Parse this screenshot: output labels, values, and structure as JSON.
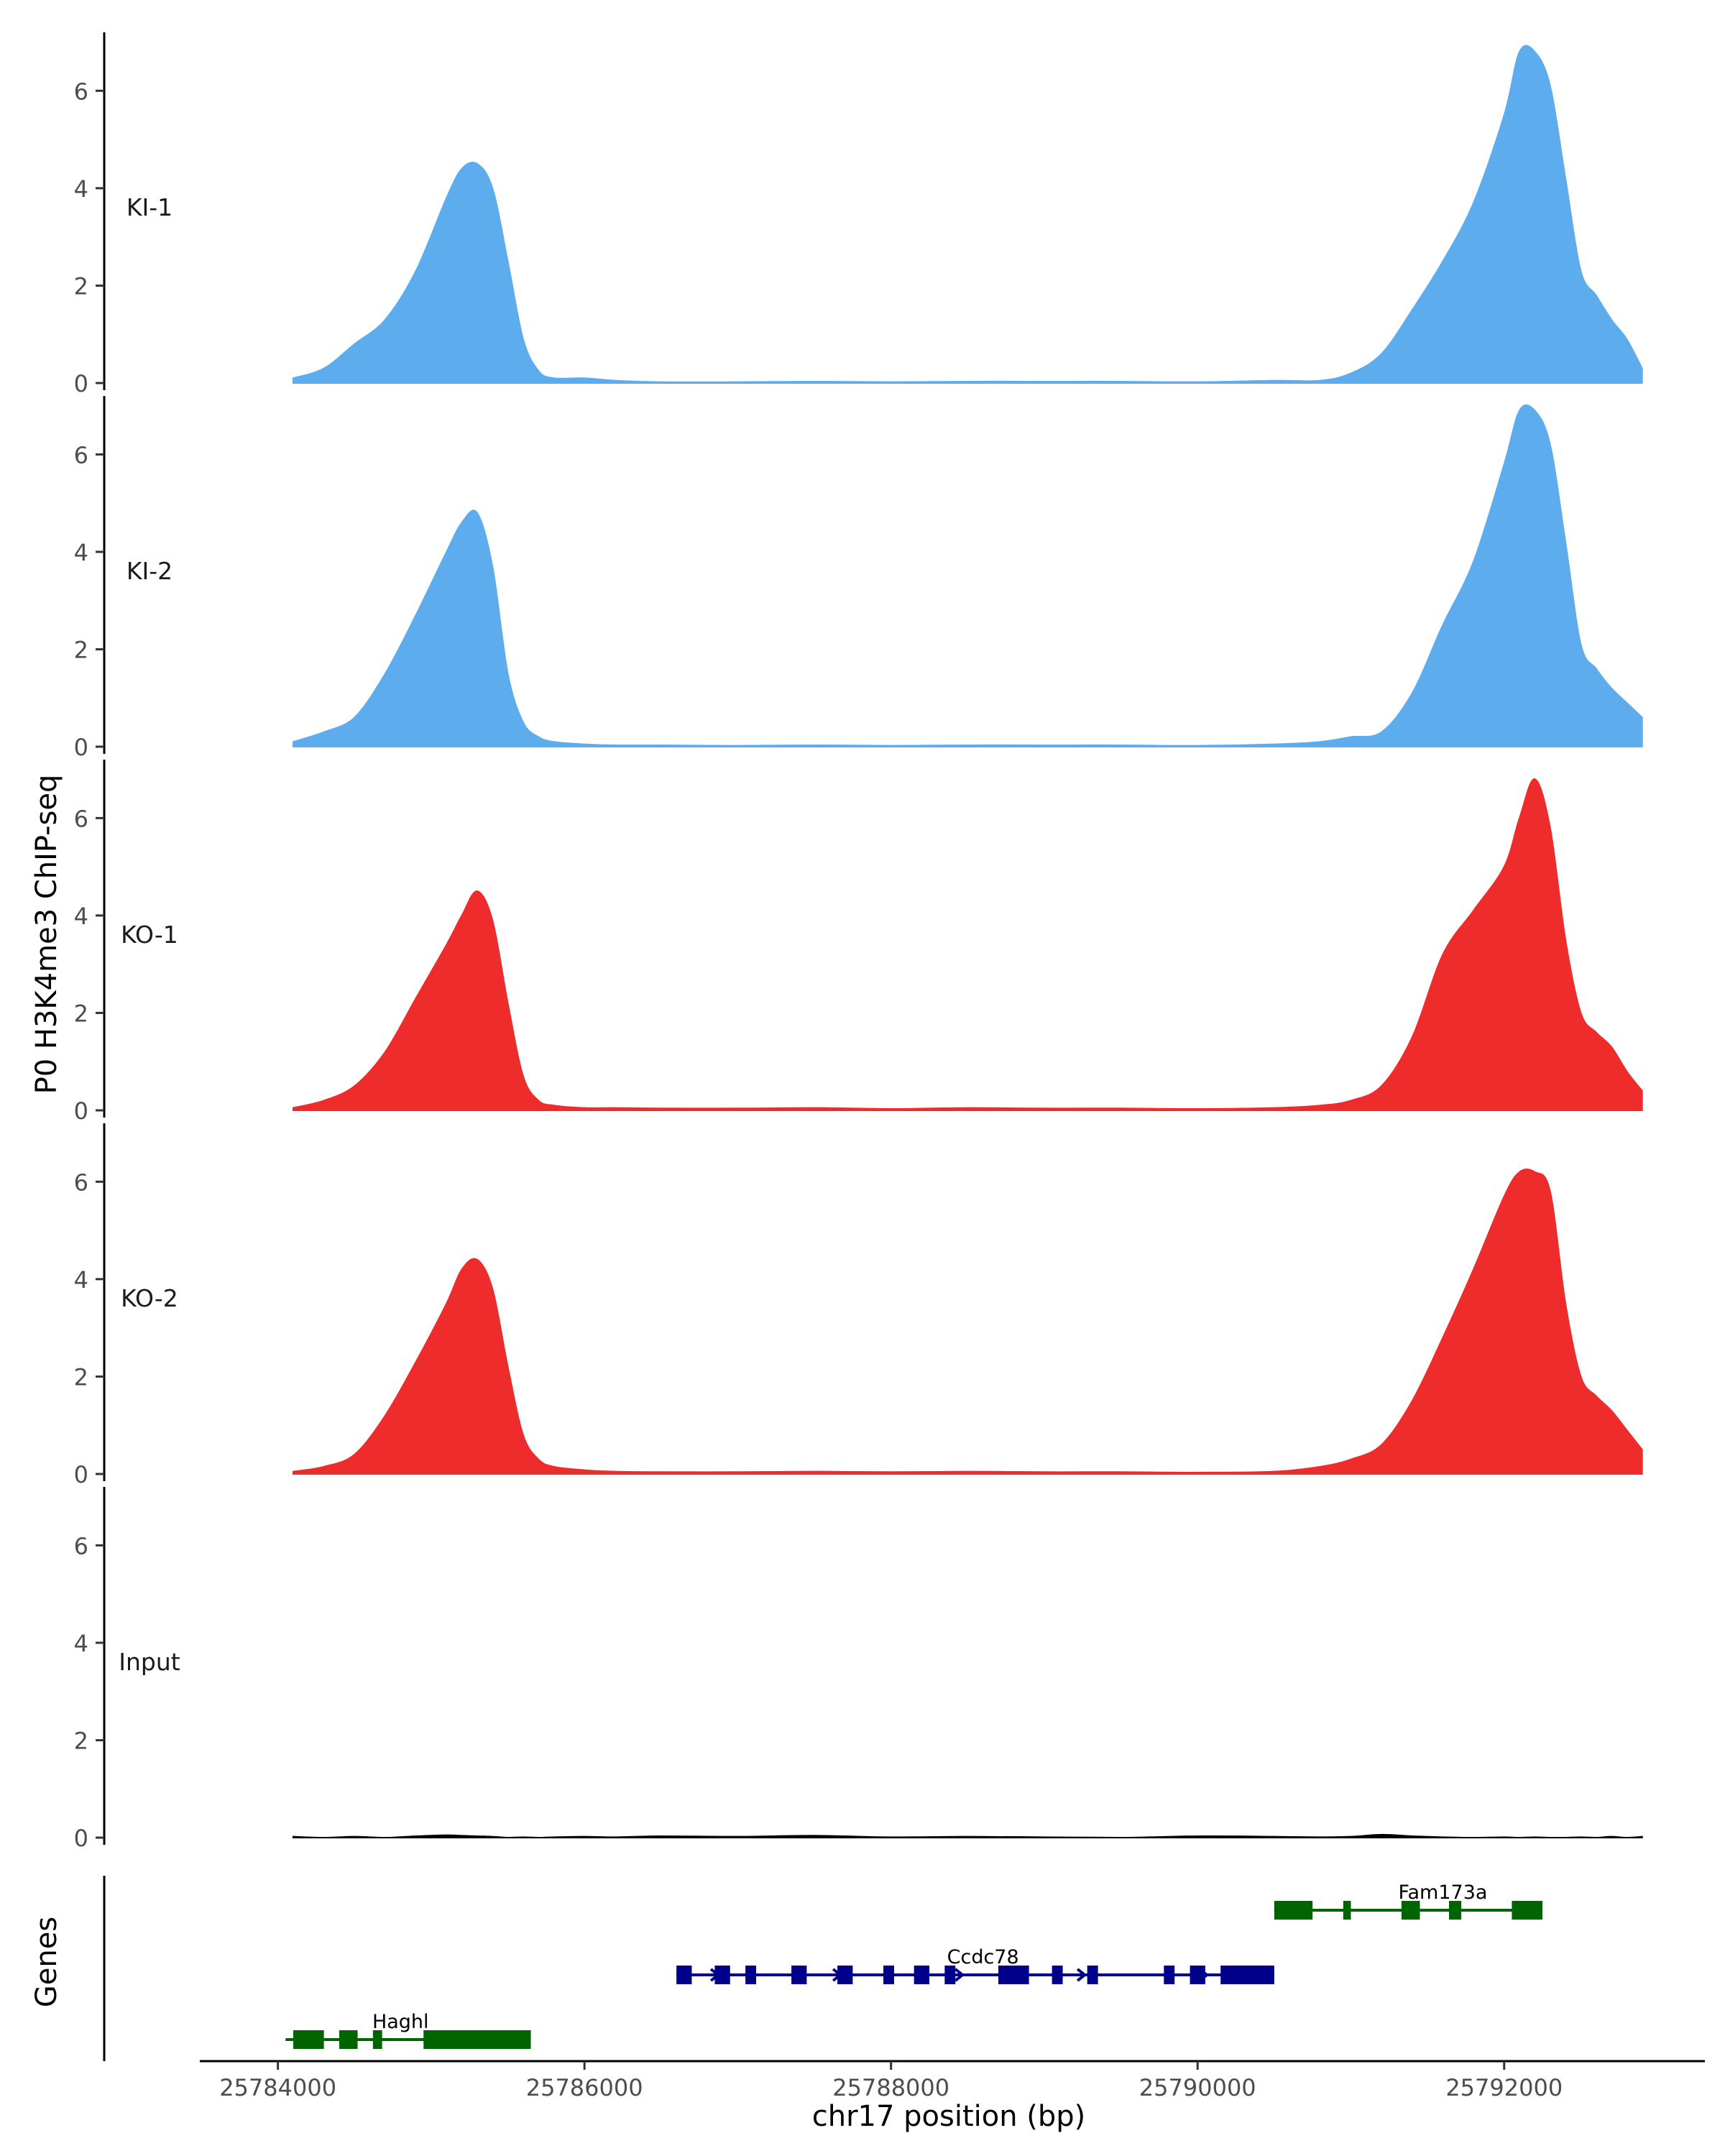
{
  "chart_data": {
    "type": "area",
    "ylabel": "P0 H3K4me3 ChIP-seq",
    "xlabel": "chr17 position (bp)",
    "ylim": [
      0,
      7.2
    ],
    "xlim": [
      25783500,
      25793300
    ],
    "y_ticks": [
      0,
      2,
      4,
      6
    ],
    "x_ticks": [
      25784000,
      25786000,
      25788000,
      25790000,
      25792000
    ],
    "x_tick_labels": [
      "25784000",
      "25786000",
      "25788000",
      "25790000",
      "25792000"
    ],
    "colors": {
      "KI": "#5DADEE",
      "KO": "#EE2C2C",
      "Input": "#000000",
      "minus_strand_gene": "#006400",
      "plus_strand_gene": "#00008B"
    },
    "x": [
      25784100,
      25784300,
      25784500,
      25784700,
      25784900,
      25785100,
      25785200,
      25785300,
      25785400,
      25785500,
      25785600,
      25785700,
      25785800,
      25786000,
      25786200,
      25786500,
      25787000,
      25787500,
      25788000,
      25788500,
      25789000,
      25789500,
      25790000,
      25790500,
      25790800,
      25791000,
      25791200,
      25791400,
      25791600,
      25791800,
      25792000,
      25792100,
      25792200,
      25792300,
      25792400,
      25792500,
      25792600,
      25792700,
      25792800,
      25792900
    ],
    "tracks": [
      {
        "name": "KI-1",
        "color": "#5DADEE",
        "values": [
          0.1,
          0.3,
          0.8,
          1.3,
          2.3,
          3.8,
          4.4,
          4.5,
          4.0,
          2.5,
          0.9,
          0.25,
          0.1,
          0.1,
          0.05,
          0.02,
          0.02,
          0.03,
          0.02,
          0.03,
          0.03,
          0.03,
          0.02,
          0.05,
          0.05,
          0.2,
          0.6,
          1.5,
          2.5,
          3.7,
          5.5,
          6.8,
          6.8,
          6.1,
          4.2,
          2.3,
          1.8,
          1.3,
          0.9,
          0.3
        ]
      },
      {
        "name": "KI-2",
        "color": "#5DADEE",
        "values": [
          0.1,
          0.3,
          0.6,
          1.5,
          2.7,
          4.0,
          4.6,
          4.8,
          3.7,
          1.5,
          0.5,
          0.2,
          0.1,
          0.05,
          0.03,
          0.03,
          0.02,
          0.03,
          0.02,
          0.03,
          0.03,
          0.03,
          0.02,
          0.05,
          0.1,
          0.2,
          0.3,
          1.1,
          2.5,
          3.8,
          5.8,
          6.9,
          6.9,
          6.2,
          4.2,
          2.1,
          1.6,
          1.2,
          0.9,
          0.6
        ]
      },
      {
        "name": "KO-1",
        "color": "#EE2C2C",
        "values": [
          0.05,
          0.2,
          0.5,
          1.2,
          2.3,
          3.4,
          4.0,
          4.5,
          3.9,
          2.2,
          0.7,
          0.2,
          0.1,
          0.05,
          0.05,
          0.04,
          0.04,
          0.05,
          0.03,
          0.05,
          0.04,
          0.04,
          0.03,
          0.05,
          0.1,
          0.2,
          0.5,
          1.5,
          3.2,
          4.1,
          5.0,
          6.0,
          6.8,
          5.8,
          3.5,
          2.0,
          1.6,
          1.3,
          0.8,
          0.4
        ]
      },
      {
        "name": "KO-2",
        "color": "#EE2C2C",
        "values": [
          0.05,
          0.15,
          0.4,
          1.2,
          2.3,
          3.5,
          4.2,
          4.4,
          3.8,
          2.2,
          0.8,
          0.3,
          0.15,
          0.08,
          0.05,
          0.04,
          0.04,
          0.05,
          0.04,
          0.05,
          0.04,
          0.04,
          0.03,
          0.05,
          0.15,
          0.3,
          0.6,
          1.5,
          2.8,
          4.2,
          5.7,
          6.2,
          6.2,
          5.8,
          3.5,
          2.0,
          1.6,
          1.3,
          0.9,
          0.5
        ]
      },
      {
        "name": "Input",
        "color": "#000000",
        "values": [
          0.02,
          0.0,
          0.02,
          0.0,
          0.03,
          0.05,
          0.04,
          0.03,
          0.02,
          0.0,
          0.01,
          0.0,
          0.01,
          0.02,
          0.01,
          0.03,
          0.02,
          0.04,
          0.01,
          0.02,
          0.01,
          0.0,
          0.03,
          0.02,
          0.01,
          0.02,
          0.06,
          0.03,
          0.01,
          0.0,
          0.01,
          0.0,
          0.01,
          0.0,
          0.0,
          0.01,
          0.0,
          0.02,
          0.0,
          0.02
        ]
      }
    ],
    "genes_label": "Genes",
    "genes": [
      {
        "name": "Fam173a",
        "strand": "-",
        "row": 0,
        "start": 25790500,
        "end": 25792250,
        "label_x": 25791600,
        "exons": [
          [
            25790500,
            25790750
          ],
          [
            25790950,
            25791000
          ],
          [
            25791330,
            25791450
          ],
          [
            25791640,
            25791720
          ],
          [
            25792050,
            25792250
          ]
        ]
      },
      {
        "name": "Ccdc78",
        "strand": "+",
        "row": 1,
        "start": 25786600,
        "end": 25790500,
        "label_x": 25788600,
        "exons": [
          [
            25786600,
            25786700
          ],
          [
            25786850,
            25786950
          ],
          [
            25787050,
            25787120
          ],
          [
            25787350,
            25787450
          ],
          [
            25787650,
            25787750
          ],
          [
            25787950,
            25788020
          ],
          [
            25788150,
            25788250
          ],
          [
            25788350,
            25788420
          ],
          [
            25788700,
            25788900
          ],
          [
            25789050,
            25789120
          ],
          [
            25789280,
            25789350
          ],
          [
            25789780,
            25789850
          ],
          [
            25789950,
            25790050
          ],
          [
            25790150,
            25790500
          ]
        ]
      },
      {
        "name": "Haghl",
        "strand": "-",
        "row": 2,
        "start": 25784050,
        "end": 25785650,
        "label_x": 25784800,
        "exons": [
          [
            25784100,
            25784300
          ],
          [
            25784400,
            25784520
          ],
          [
            25784620,
            25784680
          ],
          [
            25784950,
            25785650
          ]
        ]
      }
    ]
  }
}
